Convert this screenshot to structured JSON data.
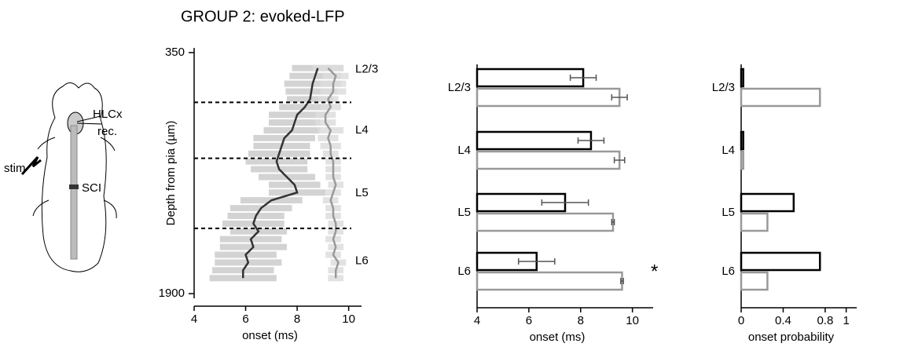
{
  "figure_title": "GROUP 2: evoked-LFP",
  "illustration": {
    "recording_label_1": "HLCx",
    "recording_label_2": "rec.",
    "stim_label": "stim",
    "lesion_label": "SCI"
  },
  "chart_data": [
    {
      "type": "profile",
      "xlabel": "onset (ms)",
      "ylabel": "Depth from pia (µm)",
      "xlim": [
        4,
        10.5
      ],
      "xticks": [
        4,
        6,
        8,
        10
      ],
      "ylim": [
        350,
        1900
      ],
      "yticks": [
        350,
        1900
      ],
      "y_inverted": true,
      "y": [
        450,
        500,
        550,
        600,
        650,
        700,
        750,
        800,
        850,
        900,
        950,
        1000,
        1050,
        1100,
        1150,
        1200,
        1250,
        1300,
        1350,
        1400,
        1450,
        1500,
        1550,
        1600,
        1650,
        1700,
        1750,
        1800
      ],
      "layers": [
        "L2/3",
        "L4",
        "L5",
        "L6"
      ],
      "layer_boundaries": [
        670,
        1030,
        1480
      ],
      "series": [
        {
          "color": "#333333",
          "error_color": "#cccccc",
          "values": [
            8.8,
            8.7,
            8.6,
            8.55,
            8.5,
            8.3,
            8.0,
            7.9,
            7.8,
            7.5,
            7.4,
            7.3,
            7.2,
            7.3,
            7.6,
            7.9,
            8.0,
            7.0,
            6.6,
            6.4,
            6.3,
            6.5,
            6.2,
            6.3,
            6.0,
            6.1,
            5.9,
            5.9
          ],
          "errors": [
            1.0,
            1.0,
            1.1,
            1.0,
            0.9,
            1.0,
            1.1,
            1.0,
            1.1,
            1.2,
            1.1,
            1.2,
            1.2,
            1.1,
            1.1,
            1.0,
            1.1,
            1.2,
            1.2,
            1.1,
            1.2,
            1.1,
            1.2,
            1.3,
            1.2,
            1.3,
            1.2,
            1.3
          ]
        },
        {
          "color": "#999999",
          "error_color": "#dddddd",
          "values": [
            9.2,
            9.5,
            9.4,
            9.4,
            9.2,
            9.3,
            9.1,
            9.1,
            9.3,
            9.2,
            9.3,
            9.3,
            9.4,
            9.4,
            9.4,
            9.5,
            9.4,
            9.3,
            9.4,
            9.4,
            9.5,
            9.5,
            9.4,
            9.5,
            9.4,
            9.6,
            9.5,
            9.5
          ],
          "errors": [
            0.6,
            0.5,
            0.5,
            0.5,
            0.4,
            0.4,
            0.4,
            0.4,
            0.5,
            0.4,
            0.4,
            0.3,
            0.3,
            0.3,
            0.3,
            0.3,
            0.3,
            0.3,
            0.3,
            0.3,
            0.3,
            0.3,
            0.3,
            0.3,
            0.3,
            0.3,
            0.3,
            0.3
          ]
        }
      ]
    },
    {
      "type": "barh",
      "xlabel": "onset (ms)",
      "xlim": [
        4,
        10.8
      ],
      "xticks": [
        4,
        6,
        8,
        10
      ],
      "categories": [
        "L2/3",
        "L4",
        "L5",
        "L6"
      ],
      "annotation": "*",
      "series": [
        {
          "color": "#000000",
          "values": [
            8.1,
            8.4,
            7.4,
            6.3
          ],
          "errors": [
            0.5,
            0.5,
            0.9,
            0.7
          ]
        },
        {
          "color": "#999999",
          "values": [
            9.5,
            9.5,
            9.25,
            9.6
          ],
          "errors": [
            0.3,
            0.2,
            0.05,
            0.05
          ]
        }
      ]
    },
    {
      "type": "barh",
      "xlabel": "onset probability",
      "xlim": [
        0,
        1.1
      ],
      "xticks": [
        0,
        0.4,
        0.8,
        1
      ],
      "categories": [
        "L2/3",
        "L4",
        "L5",
        "L6"
      ],
      "series": [
        {
          "color": "#000000",
          "values": [
            0.02,
            0.02,
            0.5,
            0.75
          ]
        },
        {
          "color": "#999999",
          "values": [
            0.75,
            0.02,
            0.25,
            0.25
          ]
        }
      ]
    }
  ]
}
